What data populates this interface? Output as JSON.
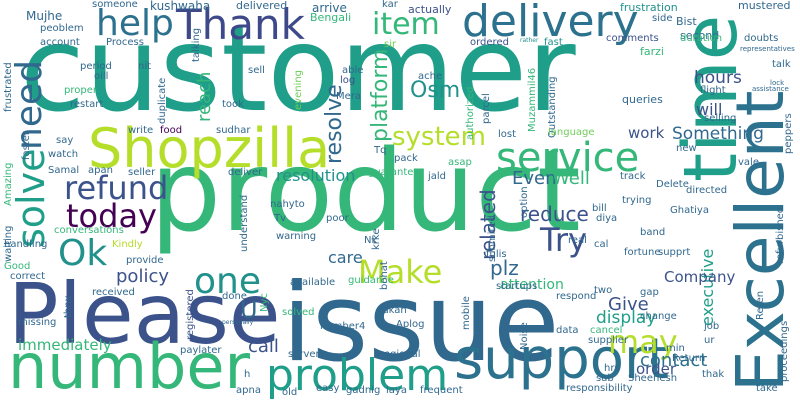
{
  "background": "#ffffff",
  "palette": {
    "purple": "#440154",
    "indigo": "#3b528b",
    "blue": "#31688e",
    "teal": "#21918c",
    "sea": "#1f9e89",
    "green": "#35b779",
    "lime": "#6ece58",
    "yellow": "#b5de2b"
  },
  "words": [
    {
      "text": "customer",
      "color": "#1f9e89"
    },
    {
      "text": "product",
      "color": "#35b779"
    },
    {
      "text": "issue",
      "color": "#31688e"
    },
    {
      "text": "Please",
      "color": "#3b528b"
    },
    {
      "text": "number",
      "color": "#35b779"
    },
    {
      "text": "time",
      "color": "#1f9e89"
    },
    {
      "text": "Excellent",
      "color": "#2c728e"
    },
    {
      "text": "Shopzilla",
      "color": "#b5de2b"
    },
    {
      "text": "support",
      "color": "#2c728e"
    },
    {
      "text": "delivery",
      "color": "#2c728e"
    },
    {
      "text": "Thank",
      "color": "#3e4989"
    },
    {
      "text": "help",
      "color": "#2c728e"
    },
    {
      "text": "problem",
      "color": "#1f9e89"
    },
    {
      "text": "service",
      "color": "#35b779"
    },
    {
      "text": "refund",
      "color": "#3b528b"
    },
    {
      "text": "today",
      "color": "#440154"
    },
    {
      "text": "solve",
      "color": "#1f9e89"
    },
    {
      "text": "need",
      "color": "#31688e"
    },
    {
      "text": "Ok",
      "color": "#21918c"
    },
    {
      "text": "one",
      "color": "#21918c"
    },
    {
      "text": "Make",
      "color": "#b5de2b"
    },
    {
      "text": "Try",
      "color": "#3b528b"
    },
    {
      "text": "may",
      "color": "#b5de2b"
    },
    {
      "text": "item",
      "color": "#35b779"
    },
    {
      "text": "system",
      "color": "#b5de2b"
    },
    {
      "text": "platform",
      "color": "#35b779"
    },
    {
      "text": "reduce",
      "color": "#3b528b"
    },
    {
      "text": "resolve",
      "color": "#31688e"
    },
    {
      "text": "Osm",
      "color": "#21918c"
    },
    {
      "text": "Something",
      "color": "#31688e"
    },
    {
      "text": "Even",
      "color": "#31688e"
    },
    {
      "text": "Well",
      "color": "#35b779"
    },
    {
      "text": "related",
      "color": "#3b528b"
    },
    {
      "text": "policy",
      "color": "#3b528b"
    },
    {
      "text": "care",
      "color": "#31688e"
    },
    {
      "text": "Give",
      "color": "#3b528b"
    },
    {
      "text": "display",
      "color": "#1f9e89"
    },
    {
      "text": "plz",
      "color": "#31688e"
    },
    {
      "text": "call",
      "color": "#3b528b"
    },
    {
      "text": "contact",
      "color": "#2c728e"
    },
    {
      "text": "executive",
      "color": "#1f9e89"
    },
    {
      "text": "Company",
      "color": "#3b528b"
    },
    {
      "text": "resolution",
      "color": "#21918c"
    },
    {
      "text": "reach",
      "color": "#35b779"
    },
    {
      "text": "hours",
      "color": "#3b528b"
    },
    {
      "text": "work",
      "color": "#3b528b"
    },
    {
      "text": "will",
      "color": "#3b528b"
    },
    {
      "text": "order",
      "color": "#3b528b"
    },
    {
      "text": "immediately",
      "color": "#35b779"
    },
    {
      "text": "attention",
      "color": "#35b779"
    },
    {
      "text": "U",
      "color": "#31688e"
    },
    {
      "text": "Mujhe",
      "color": "#31688e"
    },
    {
      "text": "kushwaha",
      "color": "#31688e"
    },
    {
      "text": "delivered",
      "color": "#31688e"
    },
    {
      "text": "arrive",
      "color": "#31688e"
    },
    {
      "text": "kar",
      "color": "#31688e"
    },
    {
      "text": "actually",
      "color": "#3b528b"
    },
    {
      "text": "frustration",
      "color": "#21918c"
    },
    {
      "text": "Bist",
      "color": "#31688e"
    },
    {
      "text": "mustered",
      "color": "#31688e"
    },
    {
      "text": "side",
      "color": "#31688e"
    },
    {
      "text": "second",
      "color": "#31688e"
    },
    {
      "text": "duration",
      "color": "#35b779"
    },
    {
      "text": "comments",
      "color": "#3b528b"
    },
    {
      "text": "doubts",
      "color": "#31688e"
    },
    {
      "text": "farzi",
      "color": "#35b779"
    },
    {
      "text": "someone",
      "color": "#31688e"
    },
    {
      "text": "Bengali",
      "color": "#35b779"
    },
    {
      "text": "peoblem",
      "color": "#31688e"
    },
    {
      "text": "account",
      "color": "#31688e"
    },
    {
      "text": "Process",
      "color": "#31688e"
    },
    {
      "text": "talking",
      "color": "#31688e"
    },
    {
      "text": "sell",
      "color": "#31688e"
    },
    {
      "text": "log",
      "color": "#3b528b"
    },
    {
      "text": "able",
      "color": "#31688e"
    },
    {
      "text": "ordered",
      "color": "#3b528b"
    },
    {
      "text": "fast",
      "color": "#21918c"
    },
    {
      "text": "sir",
      "color": "#6ece58"
    },
    {
      "text": "rather",
      "color": "#21918c"
    },
    {
      "text": "frustrated",
      "color": "#31688e"
    },
    {
      "text": "period",
      "color": "#31688e"
    },
    {
      "text": "oill",
      "color": "#31688e"
    },
    {
      "text": "nit",
      "color": "#31688e"
    },
    {
      "text": "proper",
      "color": "#35b779"
    },
    {
      "text": "restart",
      "color": "#31688e"
    },
    {
      "text": "duplicate",
      "color": "#31688e"
    },
    {
      "text": "evening",
      "color": "#6ece58"
    },
    {
      "text": "Mera",
      "color": "#31688e"
    },
    {
      "text": "ache",
      "color": "#31688e"
    },
    {
      "text": "authorized",
      "color": "#35b779"
    },
    {
      "text": "Muzammil46",
      "color": "#35b779"
    },
    {
      "text": "Outstanding",
      "color": "#31688e"
    },
    {
      "text": "language",
      "color": "#6ece58"
    },
    {
      "text": "queries",
      "color": "#31688e"
    },
    {
      "text": "flight",
      "color": "#31688e"
    },
    {
      "text": "selling",
      "color": "#31688e"
    },
    {
      "text": "took",
      "color": "#31688e"
    },
    {
      "text": "sudhar",
      "color": "#31688e"
    },
    {
      "text": "Tq",
      "color": "#31688e"
    },
    {
      "text": "parcel",
      "color": "#31688e"
    },
    {
      "text": "lost",
      "color": "#31688e"
    },
    {
      "text": "pack",
      "color": "#31688e"
    },
    {
      "text": "asap",
      "color": "#35b779"
    },
    {
      "text": "jald",
      "color": "#31688e"
    },
    {
      "text": "guarantee",
      "color": "#35b779"
    },
    {
      "text": "write",
      "color": "#31688e"
    },
    {
      "text": "food",
      "color": "#440154"
    },
    {
      "text": "say",
      "color": "#31688e"
    },
    {
      "text": "watch",
      "color": "#31688e"
    },
    {
      "text": "Samal",
      "color": "#31688e"
    },
    {
      "text": "apan",
      "color": "#31688e"
    },
    {
      "text": "seller",
      "color": "#31688e"
    },
    {
      "text": "deliver",
      "color": "#31688e"
    },
    {
      "text": "nahyto",
      "color": "#31688e"
    },
    {
      "text": "Tv",
      "color": "#31688e"
    },
    {
      "text": "poor",
      "color": "#31688e"
    },
    {
      "text": "understand",
      "color": "#31688e"
    },
    {
      "text": "warning",
      "color": "#31688e"
    },
    {
      "text": "krke",
      "color": "#31688e"
    },
    {
      "text": "Nk",
      "color": "#31688e"
    },
    {
      "text": "guidance",
      "color": "#35b779"
    },
    {
      "text": "Amazing",
      "color": "#35b779"
    },
    {
      "text": "faster",
      "color": "#31688e"
    },
    {
      "text": "waiting",
      "color": "#31688e"
    },
    {
      "text": "handling",
      "color": "#31688e"
    },
    {
      "text": "conversations",
      "color": "#35b779"
    },
    {
      "text": "Kindly",
      "color": "#b5de2b"
    },
    {
      "text": "provide",
      "color": "#31688e"
    },
    {
      "text": "Good",
      "color": "#35b779"
    },
    {
      "text": "correct",
      "color": "#31688e"
    },
    {
      "text": "received",
      "color": "#31688e"
    },
    {
      "text": "done",
      "color": "#31688e"
    },
    {
      "text": "available",
      "color": "#31688e"
    },
    {
      "text": "solved",
      "color": "#35b779"
    },
    {
      "text": "Nyc",
      "color": "#35b779"
    },
    {
      "text": "bohat",
      "color": "#31688e"
    },
    {
      "text": "registered",
      "color": "#3b528b"
    },
    {
      "text": "missing",
      "color": "#31688e"
    },
    {
      "text": "thnx",
      "color": "#31688e"
    },
    {
      "text": "number4",
      "color": "#31688e"
    },
    {
      "text": "dukan",
      "color": "#31688e"
    },
    {
      "text": "Aplog",
      "color": "#31688e"
    },
    {
      "text": "personally",
      "color": "#31688e"
    },
    {
      "text": "paylater",
      "color": "#31688e"
    },
    {
      "text": "server",
      "color": "#31688e"
    },
    {
      "text": "regional",
      "color": "#31688e"
    },
    {
      "text": "apna",
      "color": "#31688e"
    },
    {
      "text": "old",
      "color": "#31688e"
    },
    {
      "text": "easy",
      "color": "#31688e"
    },
    {
      "text": "gadnig",
      "color": "#31688e"
    },
    {
      "text": "laya",
      "color": "#31688e"
    },
    {
      "text": "frequent",
      "color": "#31688e"
    },
    {
      "text": "h",
      "color": "#31688e"
    },
    {
      "text": "mobile",
      "color": "#31688e"
    },
    {
      "text": "Noise",
      "color": "#31688e"
    },
    {
      "text": "data",
      "color": "#31688e"
    },
    {
      "text": "supplier",
      "color": "#31688e"
    },
    {
      "text": "hrs",
      "color": "#31688e"
    },
    {
      "text": "sab",
      "color": "#31688e"
    },
    {
      "text": "responsibility",
      "color": "#31688e"
    },
    {
      "text": "Sheenesh",
      "color": "#31688e"
    },
    {
      "text": "Return",
      "color": "#31688e"
    },
    {
      "text": "min",
      "color": "#31688e"
    },
    {
      "text": "thak",
      "color": "#31688e"
    },
    {
      "text": "take",
      "color": "#31688e"
    },
    {
      "text": "proceedings",
      "color": "#31688e"
    },
    {
      "text": "ur",
      "color": "#31688e"
    },
    {
      "text": "job",
      "color": "#31688e"
    },
    {
      "text": "cancel",
      "color": "#35b779"
    },
    {
      "text": "change",
      "color": "#31688e"
    },
    {
      "text": "Reten",
      "color": "#31688e"
    },
    {
      "text": "refurbished",
      "color": "#31688e"
    },
    {
      "text": "gap",
      "color": "#31688e"
    },
    {
      "text": "two",
      "color": "#31688e"
    },
    {
      "text": "respond",
      "color": "#31688e"
    },
    {
      "text": "startups",
      "color": "#31688e"
    },
    {
      "text": "fulis",
      "color": "#31688e"
    },
    {
      "text": "submited",
      "color": "#31688e"
    },
    {
      "text": "real",
      "color": "#31688e"
    },
    {
      "text": "bill",
      "color": "#31688e"
    },
    {
      "text": "cal",
      "color": "#31688e"
    },
    {
      "text": "fortune",
      "color": "#31688e"
    },
    {
      "text": "supprt",
      "color": "#31688e"
    },
    {
      "text": "band",
      "color": "#31688e"
    },
    {
      "text": "Ghatiya",
      "color": "#31688e"
    },
    {
      "text": "option",
      "color": "#31688e"
    },
    {
      "text": "diya",
      "color": "#31688e"
    },
    {
      "text": "trying",
      "color": "#31688e"
    },
    {
      "text": "track",
      "color": "#31688e"
    },
    {
      "text": "Delete",
      "color": "#31688e"
    },
    {
      "text": "directed",
      "color": "#31688e"
    },
    {
      "text": "vale",
      "color": "#31688e"
    },
    {
      "text": "new",
      "color": "#31688e"
    },
    {
      "text": "peppers",
      "color": "#31688e"
    },
    {
      "text": "talk",
      "color": "#31688e"
    },
    {
      "text": "representatives",
      "color": "#31688e"
    },
    {
      "text": "assistance",
      "color": "#31688e"
    },
    {
      "text": "lock",
      "color": "#31688e"
    }
  ]
}
